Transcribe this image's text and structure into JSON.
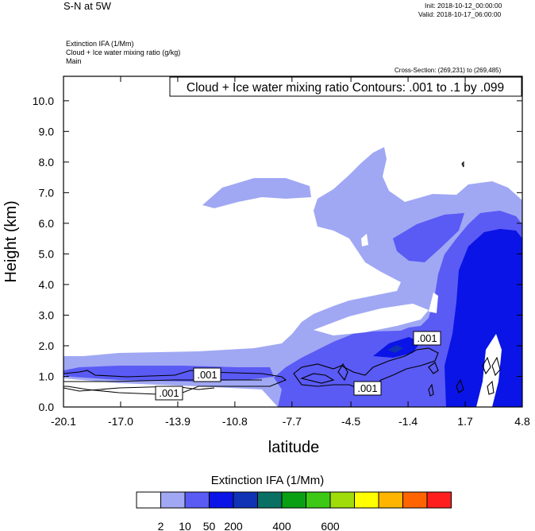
{
  "header": {
    "title": "S-N at 5W",
    "init": "Init: 2018-10-12_00:00:00",
    "valid": "Valid: 2018-10-17_06:00:00",
    "subtitles": [
      "Extinction IFA   (1/Mm)",
      "Cloud + Ice water mixing ratio   (g/kg)",
      "Main"
    ],
    "cross_section": "Cross-Section: (269,231) to (269,485)"
  },
  "chart_data": {
    "type": "contour",
    "xlabel": "latitude",
    "ylabel": "Height (km)",
    "xlim": [
      -20.1,
      4.8
    ],
    "ylim": [
      0.0,
      10.8
    ],
    "x_ticks": [
      -20.1,
      -17.0,
      -13.9,
      -10.8,
      -7.7,
      -4.5,
      -1.4,
      1.7,
      4.8
    ],
    "x_tick_labels": [
      "-20.1",
      "-17.0",
      "-13.9",
      "-10.8",
      "-7.7",
      "-4.5",
      "-1.4",
      "1.7",
      "4.8"
    ],
    "y_ticks": [
      0,
      1,
      2,
      3,
      4,
      5,
      6,
      7,
      8,
      9,
      10
    ],
    "y_tick_labels": [
      "0.0",
      "1.0",
      "2.0",
      "3.0",
      "4.0",
      "5.0",
      "6.0",
      "7.0",
      "8.0",
      "9.0",
      "10.0"
    ],
    "contour_info": "Cloud + Ice water mixing ratio Contours: .001 to .1 by .099",
    "contour_labels": [
      ".001",
      ".001",
      ".001",
      ".001"
    ],
    "filled_field": "Extinction IFA (1/Mm)",
    "colorbar": {
      "title": "Extinction IFA  (1/Mm)",
      "colors": [
        "#ffffff",
        "#a0a8f4",
        "#5a5af5",
        "#0a14e6",
        "#1032b4",
        "#0a7064",
        "#0aa014",
        "#3cc814",
        "#a0dc0a",
        "#ffff00",
        "#ffb400",
        "#ff6400",
        "#ff1e1e"
      ],
      "labels": [
        "2",
        "10",
        "50",
        "200",
        "400",
        "600"
      ]
    }
  }
}
